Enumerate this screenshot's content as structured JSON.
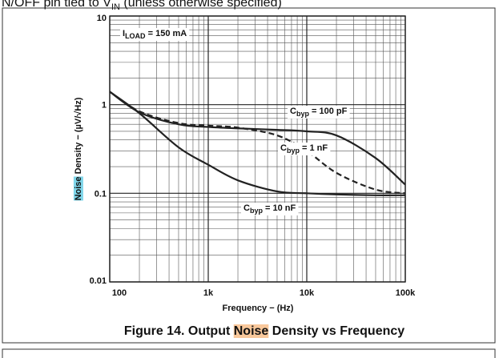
{
  "chart_data": {
    "type": "line",
    "header_parts": [
      "N/OFF pin tied to V",
      "IN",
      " (unless otherwise specified)"
    ],
    "title_parts": [
      "Figure 14. Output ",
      "Noise",
      " Density vs Frequency"
    ],
    "ylabel_parts": [
      "Noise",
      " Density − (µV/√Hz)"
    ],
    "xlabel": "Frequency − (Hz)",
    "xscale": "log",
    "yscale": "log",
    "grid": true,
    "minor_grid": true,
    "xlim": [
      100,
      100000
    ],
    "ylim": [
      0.01,
      10
    ],
    "xticks": [
      100,
      {
        "value": 1000,
        "label": "1k"
      },
      {
        "value": 10000,
        "label": "10k"
      },
      {
        "value": 100000,
        "label": "100k"
      }
    ],
    "yticks": [
      0.01,
      0.1,
      1,
      10
    ],
    "annotation_parts": [
      "I",
      "LOAD",
      " = 150 mA"
    ],
    "x": [
      100,
      200,
      500,
      1000,
      2000,
      5000,
      10000,
      20000,
      50000,
      100000
    ],
    "series": [
      {
        "name_parts": [
          "C",
          "byp",
          " = 100 pF"
        ],
        "color": "#222222",
        "dash": false,
        "values": [
          1.4,
          0.82,
          0.6,
          0.56,
          0.54,
          0.52,
          0.5,
          0.45,
          0.25,
          0.125
        ]
      },
      {
        "name_parts": [
          "C",
          "byp",
          " = 1 nF"
        ],
        "color": "#222222",
        "dash": true,
        "values": [
          1.4,
          0.84,
          0.62,
          0.58,
          0.55,
          0.45,
          0.3,
          0.17,
          0.11,
          0.1
        ]
      },
      {
        "name_parts": [
          "C",
          "byp",
          " = 10 nF"
        ],
        "color": "#222222",
        "dash": false,
        "values": [
          1.4,
          0.8,
          0.33,
          0.21,
          0.14,
          0.105,
          0.1,
          0.097,
          0.095,
          0.095
        ]
      }
    ]
  }
}
